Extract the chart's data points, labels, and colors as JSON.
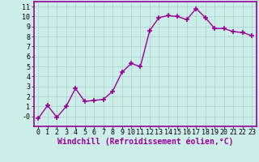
{
  "x": [
    0,
    1,
    2,
    3,
    4,
    5,
    6,
    7,
    8,
    9,
    10,
    11,
    12,
    13,
    14,
    15,
    16,
    17,
    18,
    19,
    20,
    21,
    22,
    23
  ],
  "y": [
    -0.2,
    1.1,
    -0.1,
    1.0,
    2.8,
    1.5,
    1.6,
    1.7,
    2.5,
    4.4,
    5.3,
    5.0,
    8.6,
    9.9,
    10.1,
    10.0,
    9.7,
    10.8,
    9.9,
    8.8,
    8.8,
    8.5,
    8.4,
    8.1
  ],
  "line_color": "#990099",
  "marker": "+",
  "marker_size": 4,
  "bg_color": "#cceee8",
  "grid_color": "#aacccc",
  "xlabel": "Windchill (Refroidissement éolien,°C)",
  "ylabel": "",
  "xlim": [
    -0.5,
    23.5
  ],
  "ylim": [
    -1.0,
    11.5
  ],
  "yticks": [
    0,
    1,
    2,
    3,
    4,
    5,
    6,
    7,
    8,
    9,
    10,
    11
  ],
  "xticks": [
    0,
    1,
    2,
    3,
    4,
    5,
    6,
    7,
    8,
    9,
    10,
    11,
    12,
    13,
    14,
    15,
    16,
    17,
    18,
    19,
    20,
    21,
    22,
    23
  ],
  "tick_label_size": 6,
  "xlabel_size": 7,
  "border_color": "#990099",
  "spine_linewidth": 1.2,
  "line_width": 1.0,
  "marker_linewidth": 1.2
}
